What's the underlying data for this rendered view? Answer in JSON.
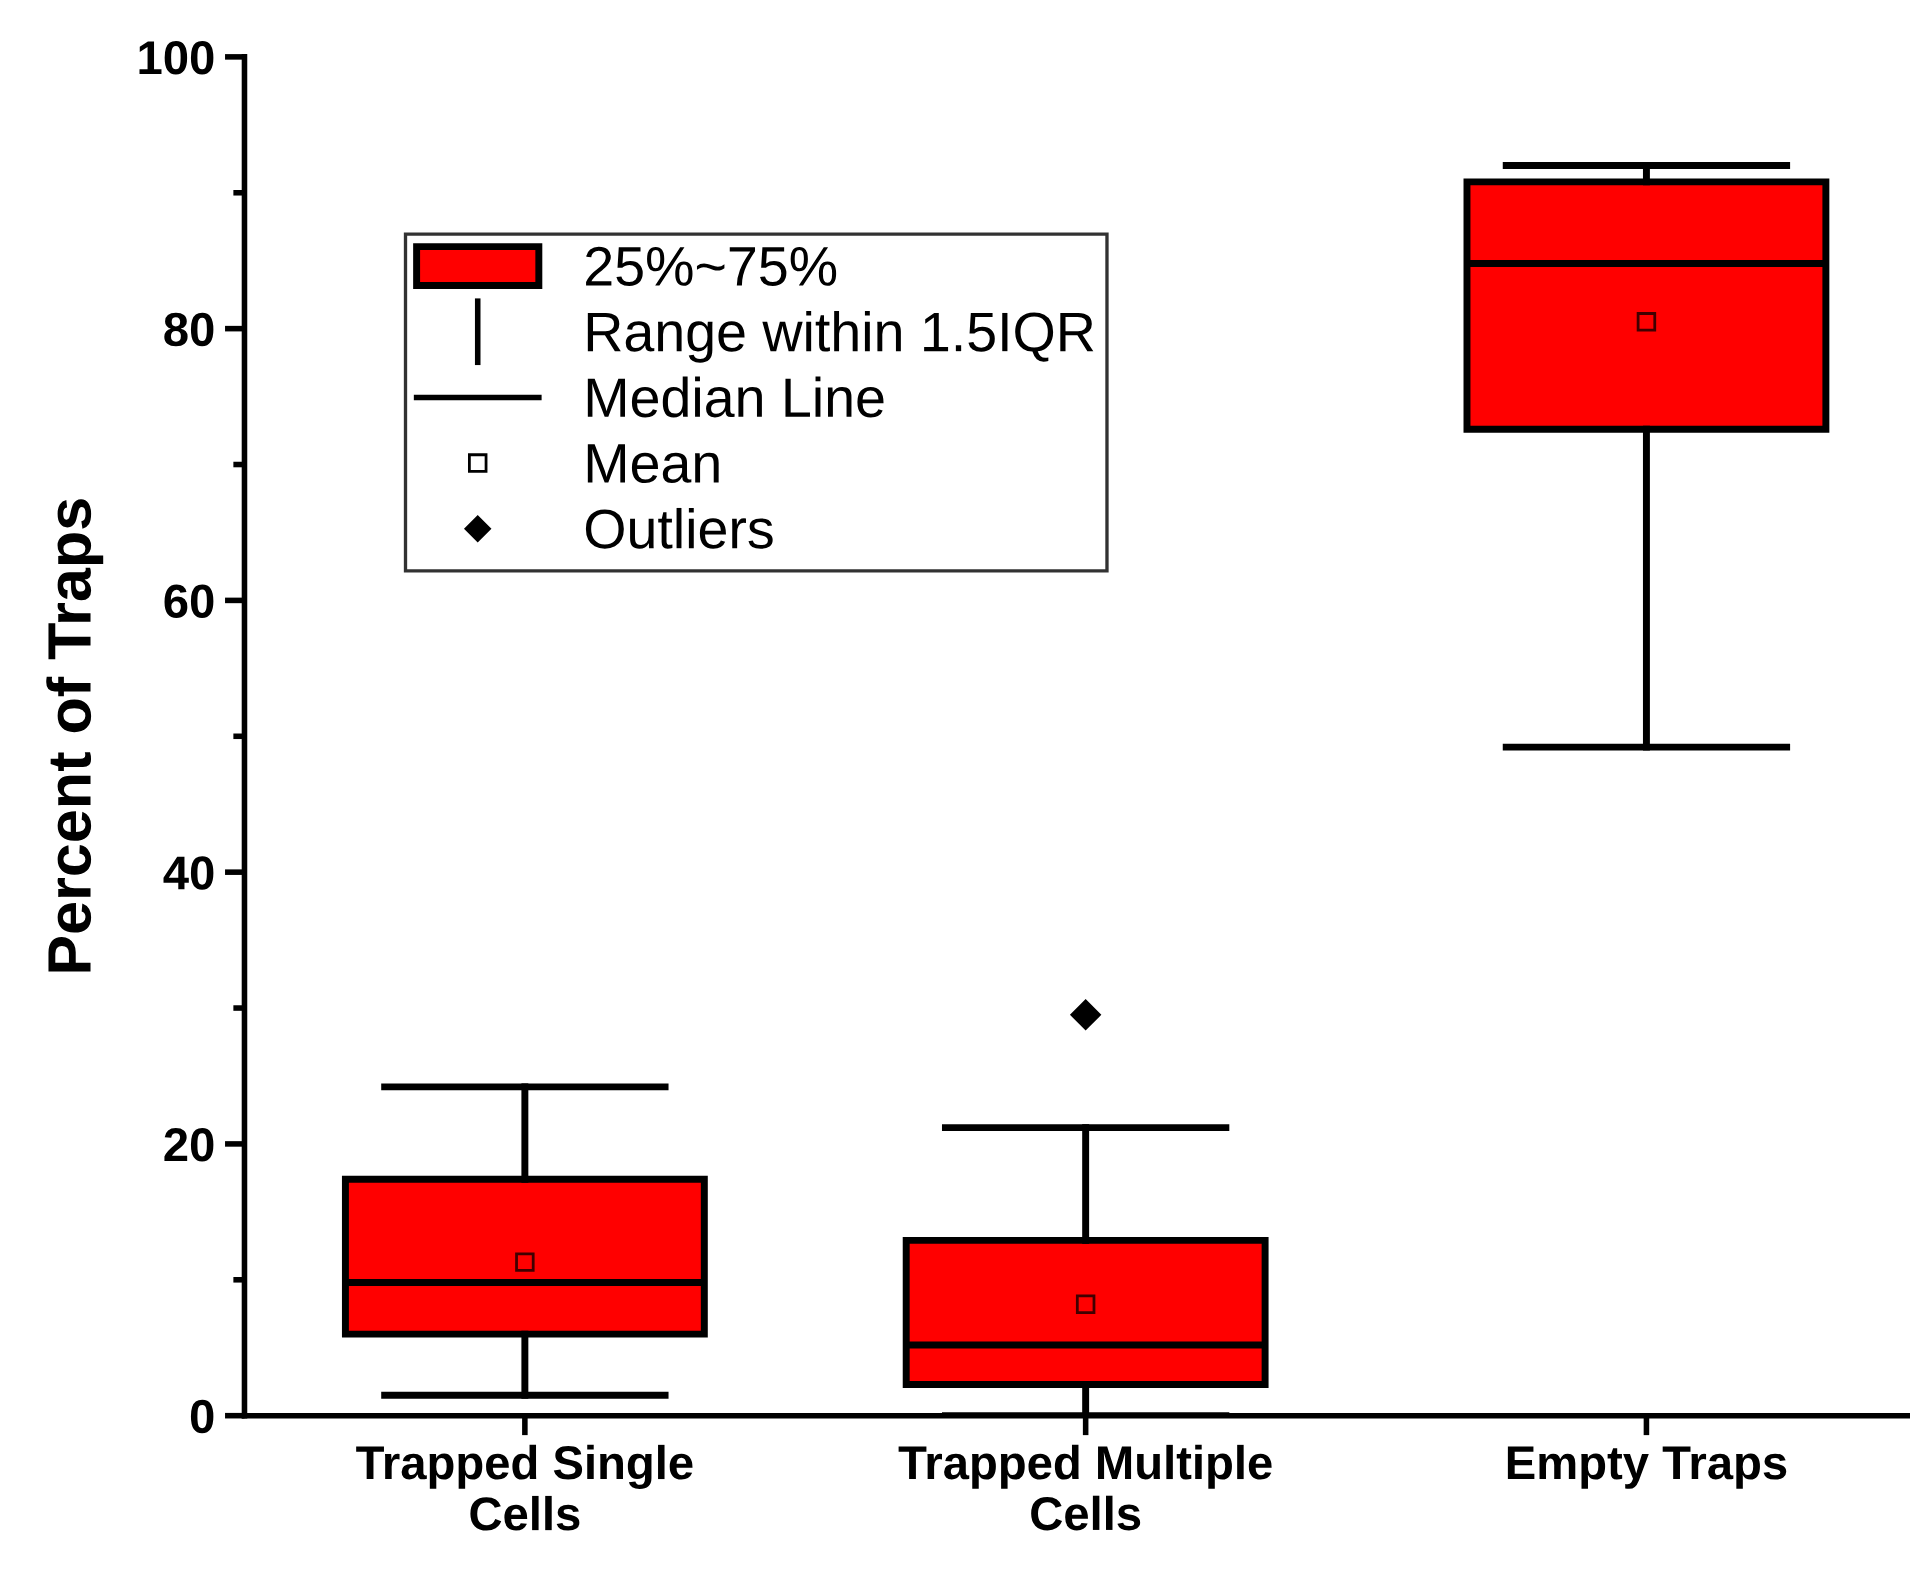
{
  "chart_data": {
    "type": "box",
    "ylabel": "Percent of Traps",
    "categories": [
      "Trapped Single\nCells",
      "Trapped Multiple\nCells",
      "Empty Traps"
    ],
    "ylim": [
      0,
      100
    ],
    "yticks": [
      0,
      20,
      40,
      60,
      80,
      100
    ],
    "grid": false,
    "legend": "top left",
    "series": [
      {
        "name": "25%~75%",
        "color": "#ff0000",
        "boxes": [
          {
            "low": 1.5,
            "q1": 6.0,
            "median": 9.8,
            "q3": 17.4,
            "high": 24.2,
            "mean": 11.3
          },
          {
            "low": 0,
            "q1": 2.3,
            "median": 5.2,
            "q3": 12.9,
            "high": 21.2,
            "mean": 8.2,
            "outliers": [
              29.5
            ]
          },
          {
            "low": 49.2,
            "q1": 72.6,
            "median": 84.8,
            "q3": 90.8,
            "high": 92.0,
            "mean": 80.5
          }
        ]
      }
    ],
    "annotations": [
      "Range within 1.5IQR",
      "Median Line",
      "Mean",
      "Outliers"
    ]
  }
}
